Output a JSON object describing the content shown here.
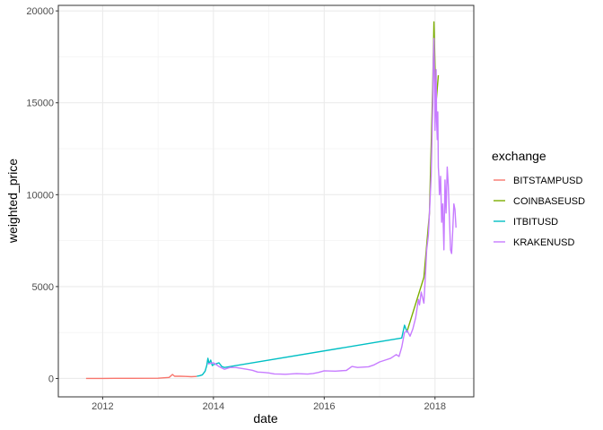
{
  "chart_data": {
    "type": "line",
    "title": "",
    "xlabel": "date",
    "ylabel": "weighted_price",
    "xlim": [
      2011.2,
      2018.7
    ],
    "ylim": [
      -1000,
      20300
    ],
    "x_ticks": [
      2012,
      2014,
      2016,
      2018
    ],
    "x_tick_labels": [
      "2012",
      "2014",
      "2016",
      "2018"
    ],
    "y_ticks": [
      0,
      5000,
      10000,
      15000,
      20000
    ],
    "y_tick_labels": [
      "0",
      "5000",
      "10000",
      "15000",
      "20000"
    ],
    "grid": true,
    "legend": {
      "title": "exchange",
      "placement": "right",
      "entries": [
        "BITSTAMPUSD",
        "COINBASEUSD",
        "ITBITUSD",
        "KRAKENUSD"
      ]
    },
    "series": [
      {
        "name": "BITSTAMPUSD",
        "color": "#F8766D",
        "x": [
          2011.7,
          2012.0,
          2012.5,
          2013.0,
          2013.2,
          2013.26,
          2013.3,
          2013.4,
          2013.5,
          2013.6,
          2013.7
        ],
        "y": [
          5,
          6,
          8,
          15,
          60,
          220,
          120,
          120,
          110,
          95,
          110
        ]
      },
      {
        "name": "COINBASEUSD",
        "color": "#7CAE00",
        "x": [
          2017.5,
          2017.8,
          2017.9,
          2017.96,
          2017.98,
          2018.0,
          2018.02,
          2018.06
        ],
        "y": [
          2600,
          5500,
          9000,
          16000,
          19400,
          17000,
          15000,
          16500
        ]
      },
      {
        "name": "ITBITUSD",
        "color": "#00BFC4",
        "x": [
          2013.7,
          2013.75,
          2013.8,
          2013.85,
          2013.88,
          2013.9,
          2013.92,
          2013.95,
          2013.98,
          2014.0,
          2014.05,
          2014.1,
          2014.15,
          2014.2,
          2017.4,
          2017.45,
          2017.5
        ],
        "y": [
          120,
          150,
          200,
          400,
          700,
          1100,
          800,
          1000,
          700,
          750,
          800,
          850,
          650,
          600,
          2200,
          2900,
          2500
        ]
      },
      {
        "name": "KRAKENUSD",
        "color": "#C77CFF",
        "x": [
          2013.9,
          2014.0,
          2014.1,
          2014.2,
          2014.3,
          2014.4,
          2014.5,
          2014.6,
          2014.7,
          2014.8,
          2014.9,
          2015.0,
          2015.1,
          2015.2,
          2015.3,
          2015.5,
          2015.7,
          2015.8,
          2015.9,
          2016.0,
          2016.2,
          2016.4,
          2016.5,
          2016.6,
          2016.8,
          2016.9,
          2017.0,
          2017.1,
          2017.2,
          2017.3,
          2017.35,
          2017.4,
          2017.45,
          2017.5,
          2017.55,
          2017.6,
          2017.65,
          2017.7,
          2017.72,
          2017.75,
          2017.8,
          2017.83,
          2017.85,
          2017.88,
          2017.9,
          2017.93,
          2017.96,
          2017.97,
          2017.98,
          2017.99,
          2018.0,
          2018.01,
          2018.02,
          2018.03,
          2018.04,
          2018.05,
          2018.06,
          2018.07,
          2018.08,
          2018.1,
          2018.12,
          2018.14,
          2018.16,
          2018.18,
          2018.2,
          2018.22,
          2018.24,
          2018.26,
          2018.28,
          2018.3,
          2018.32,
          2018.34,
          2018.36,
          2018.38
        ],
        "y": [
          800,
          850,
          650,
          500,
          600,
          600,
          550,
          500,
          450,
          350,
          330,
          300,
          250,
          240,
          230,
          260,
          240,
          270,
          330,
          420,
          400,
          440,
          650,
          600,
          640,
          740,
          900,
          1000,
          1100,
          1300,
          1200,
          1700,
          2500,
          2600,
          2300,
          2700,
          3300,
          4300,
          4000,
          4700,
          4100,
          5800,
          7000,
          7800,
          9000,
          11000,
          15000,
          17200,
          18500,
          16500,
          13500,
          15000,
          16800,
          14000,
          13000,
          14500,
          11500,
          11000,
          10000,
          11000,
          8500,
          9500,
          7000,
          10800,
          9000,
          11500,
          10500,
          8800,
          7000,
          6800,
          8000,
          9500,
          9200,
          8200
        ]
      }
    ]
  }
}
